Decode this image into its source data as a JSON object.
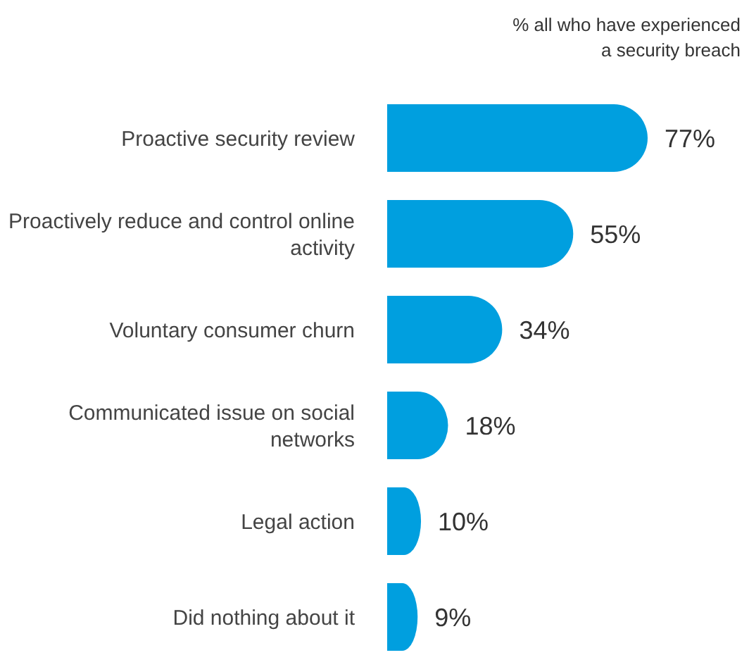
{
  "chart_data": {
    "type": "bar",
    "orientation": "horizontal",
    "title": "% all who have experienced a security breach",
    "categories": [
      "Proactive security review",
      "Proactively reduce and control online activity",
      "Voluntary consumer churn",
      "Communicated issue on social networks",
      "Legal action",
      "Did nothing about it"
    ],
    "values": [
      77,
      55,
      34,
      18,
      10,
      9
    ],
    "color": "#009fdf",
    "data_labels": true,
    "value_labels": [
      "77%",
      "55%",
      "34%",
      "18%",
      "10%",
      "9%"
    ]
  }
}
